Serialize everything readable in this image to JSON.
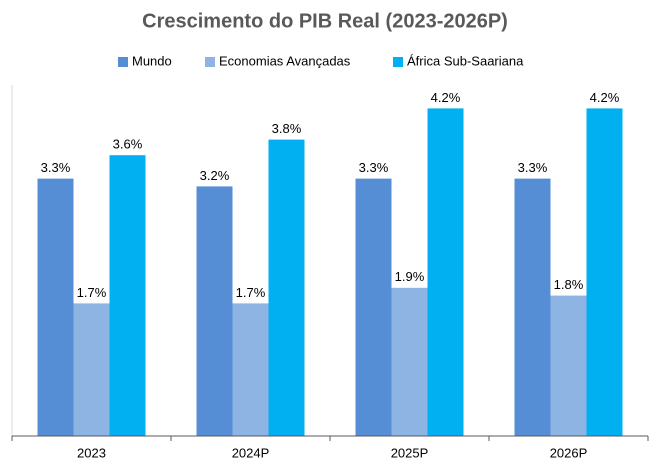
{
  "chart_data": {
    "type": "bar",
    "title": "Crescimento do PIB Real (2023-2026P)",
    "categories": [
      "2023",
      "2024P",
      "2025P",
      "2026P"
    ],
    "series": [
      {
        "name": "Mundo",
        "color": "#558ed5",
        "values": [
          3.3,
          3.2,
          3.3,
          3.3
        ],
        "value_labels": [
          "3.3%",
          "3.2%",
          "3.3%",
          "3.3%"
        ]
      },
      {
        "name": "Economias Avançadas",
        "color": "#8db4e2",
        "values": [
          1.7,
          1.7,
          1.9,
          1.8
        ],
        "value_labels": [
          "1.7%",
          "1.7%",
          "1.9%",
          "1.8%"
        ]
      },
      {
        "name": "África Sub-Saariana",
        "color": "#00b0f0",
        "values": [
          3.6,
          3.8,
          4.2,
          4.2
        ],
        "value_labels": [
          "3.6%",
          "3.8%",
          "4.2%",
          "4.2%"
        ]
      }
    ],
    "ylim": [
      0,
      4.5
    ],
    "legend": "top"
  }
}
